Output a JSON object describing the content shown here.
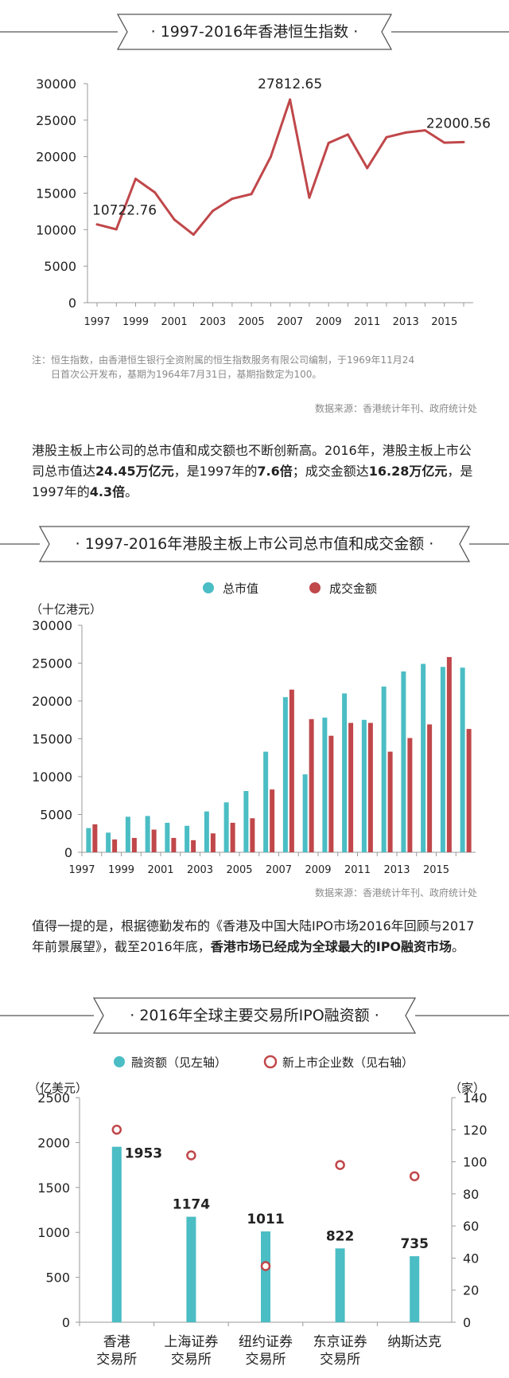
{
  "colors": {
    "red": "#c0474a",
    "teal": "#4bbdc4",
    "axis": "#999999",
    "text": "#222222",
    "gray": "#8a8a8a"
  },
  "section1": {
    "title": "· 1997-2016年香港恒生指数 ·",
    "note_line1": "注：恒生指数，由香港恒生银行全资附属的恒生指数服务有限公司编制，于1969年11月24",
    "note_line2": "日首次公开发布，基期为1964年7月31日，基期指数定为100。",
    "source": "数据来源：香港统计年刊、政府统计处"
  },
  "para1": {
    "t1": "港股主板上市公司的总市值和成交额也不断创新高。2016年，港股主板上市公司总市值达",
    "b1": "24.45万亿元",
    "t2": "，是1997年的",
    "b2": "7.6倍",
    "t3": "；成交金额达",
    "b3": "16.28万亿元",
    "t4": "，是1997年的",
    "b4": "4.3倍",
    "t5": "。"
  },
  "section2": {
    "title": "· 1997-2016年港股主板上市公司总市值和成交金额 ·",
    "source": "数据来源：香港统计年刊、政府统计处"
  },
  "para2": {
    "t1": "值得一提的是，根据德勤发布的《香港及中国大陆IPO市场2016年回顾与2017年前景展望》，截至2016年底，",
    "b1": "香港市场已经成为全球最大的IPO融资市场",
    "t2": "。"
  },
  "section3": {
    "title": "· 2016年全球主要交易所IPO融资额 ·"
  },
  "chart_data": [
    {
      "type": "line",
      "title": "1997-2016年香港恒生指数",
      "x": [
        1997,
        1998,
        1999,
        2000,
        2001,
        2002,
        2003,
        2004,
        2005,
        2006,
        2007,
        2008,
        2009,
        2010,
        2011,
        2012,
        2013,
        2014,
        2015,
        2016
      ],
      "values": [
        10722.76,
        10048,
        16962,
        15096,
        11397,
        9321,
        12576,
        14230,
        14876,
        19965,
        27812.65,
        14387,
        21873,
        23035,
        18434,
        22657,
        23306,
        23605,
        21914,
        22000.56
      ],
      "annotations": [
        {
          "index": 0,
          "label": "10722.76"
        },
        {
          "index": 10,
          "label": "27812.65"
        },
        {
          "index": 19,
          "label": "22000.56"
        }
      ],
      "x_tick_labels": [
        "1997",
        "1999",
        "2001",
        "2003",
        "2005",
        "2007",
        "2009",
        "2011",
        "2013",
        "2015"
      ],
      "y_tick_labels": [
        "0",
        "5000",
        "10000",
        "15000",
        "20000",
        "25000",
        "30000"
      ],
      "ylim": [
        0,
        30000
      ],
      "xlabel": "",
      "ylabel": ""
    },
    {
      "type": "bar",
      "title": "1997-2016年港股主板上市公司总市值和成交金额",
      "ylabel": "（十亿港元）",
      "categories": [
        1997,
        1998,
        1999,
        2000,
        2001,
        2002,
        2003,
        2004,
        2005,
        2006,
        2007,
        2008,
        2009,
        2010,
        2011,
        2012,
        2013,
        2014,
        2015,
        2016
      ],
      "series": [
        {
          "name": "总市值",
          "values": [
            3200,
            2600,
            4700,
            4800,
            3900,
            3500,
            5400,
            6600,
            8100,
            13300,
            20500,
            10300,
            17800,
            21000,
            17500,
            21900,
            23900,
            24900,
            24500,
            24400
          ]
        },
        {
          "name": "成交金额",
          "values": [
            3700,
            1700,
            1900,
            3000,
            1900,
            1600,
            2500,
            3900,
            4500,
            8300,
            21500,
            17600,
            15400,
            17100,
            17100,
            13300,
            15100,
            16900,
            25800,
            16300
          ]
        }
      ],
      "x_tick_labels": [
        "1997",
        "1999",
        "2001",
        "2003",
        "2005",
        "2007",
        "2009",
        "2011",
        "2013",
        "2015"
      ],
      "y_tick_labels": [
        "0",
        "5000",
        "10000",
        "15000",
        "20000",
        "25000",
        "30000"
      ],
      "ylim": [
        0,
        30000
      ],
      "legend": "top-center"
    },
    {
      "type": "bar",
      "title": "2016年全球主要交易所IPO融资额",
      "categories": [
        "香港\n交易所",
        "上海证券\n交易所",
        "纽约证券\n交易所",
        "东京证券\n交易所",
        "纳斯达克"
      ],
      "series": [
        {
          "name": "融资额（见左轴）",
          "axis": "left",
          "values": [
            1953,
            1174,
            1011,
            822,
            735
          ],
          "labels": [
            "1953",
            "1174",
            "1011",
            "822",
            "735"
          ]
        },
        {
          "name": "新上市企业数（见右轴）",
          "axis": "right",
          "type": "scatter",
          "values": [
            120,
            104,
            35,
            98,
            91
          ]
        }
      ],
      "ylabel_left": "（亿美元）",
      "ylabel_right": "（家）",
      "ylim_left": [
        0,
        2500
      ],
      "ylim_right": [
        0,
        140
      ],
      "y_tick_labels_left": [
        "0",
        "500",
        "1000",
        "1500",
        "2000",
        "2500"
      ],
      "y_tick_labels_right": [
        "0",
        "20",
        "40",
        "60",
        "80",
        "100",
        "120",
        "140"
      ],
      "legend": "top-center"
    }
  ]
}
